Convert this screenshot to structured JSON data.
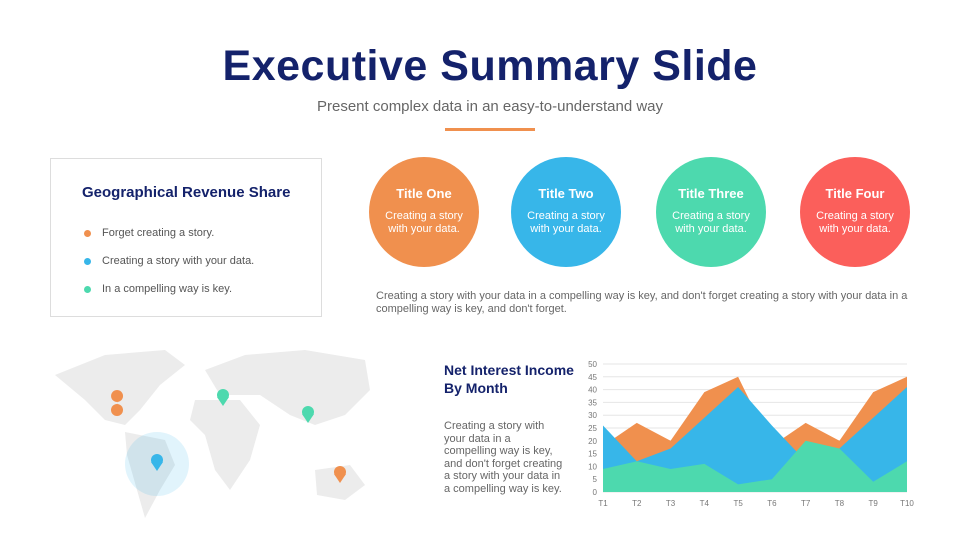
{
  "header": {
    "title": "Executive Summary Slide",
    "subtitle": "Present complex data in an easy-to-understand way"
  },
  "geo": {
    "title": "Geographical Revenue Share",
    "items": [
      {
        "label": "Forget creating a story.",
        "color": "#f0904e"
      },
      {
        "label": "Creating a story with your data.",
        "color": "#37b6e9"
      },
      {
        "label": "In a compelling way is key.",
        "color": "#4dd9ae"
      }
    ]
  },
  "circles": [
    {
      "title": "Title One",
      "text": "Creating a story with your data.",
      "color": "#f0904e"
    },
    {
      "title": "Title Two",
      "text": "Creating a story with your data.",
      "color": "#37b6e9"
    },
    {
      "title": "Title Three",
      "text": "Creating a story with your data.",
      "color": "#4dd9ae"
    },
    {
      "title": "Title Four",
      "text": "Creating a story with your data.",
      "color": "#fb5f5b"
    }
  ],
  "paragraph": "Creating a story with your data in a compelling way is key, and don't forget creating a story with your data in a compelling way is key, and don't forget.",
  "chart_section": {
    "title": "Net Interest Income By Month",
    "text": "Creating a story with your data in a compelling way is key, and don't forget creating a story with your data in a compelling way is key."
  },
  "chart_data": {
    "type": "area",
    "categories": [
      "T1",
      "T2",
      "T3",
      "T4",
      "T5",
      "T6",
      "T7",
      "T8",
      "T9",
      "T10"
    ],
    "ylim": [
      0,
      50
    ],
    "yticks": [
      0,
      5,
      10,
      15,
      20,
      25,
      30,
      35,
      40,
      45,
      50
    ],
    "grid": true,
    "series": [
      {
        "values": [
          18,
          27,
          20,
          39,
          45,
          18,
          27,
          20,
          39,
          45
        ],
        "color": "#f0904e"
      },
      {
        "values": [
          26,
          12,
          17,
          29,
          41,
          26,
          12,
          17,
          29,
          41
        ],
        "color": "#37b6e9"
      },
      {
        "values": [
          9,
          12,
          9,
          11,
          3,
          5,
          20,
          17,
          4,
          12
        ],
        "color": "#4dd9ae"
      }
    ]
  }
}
